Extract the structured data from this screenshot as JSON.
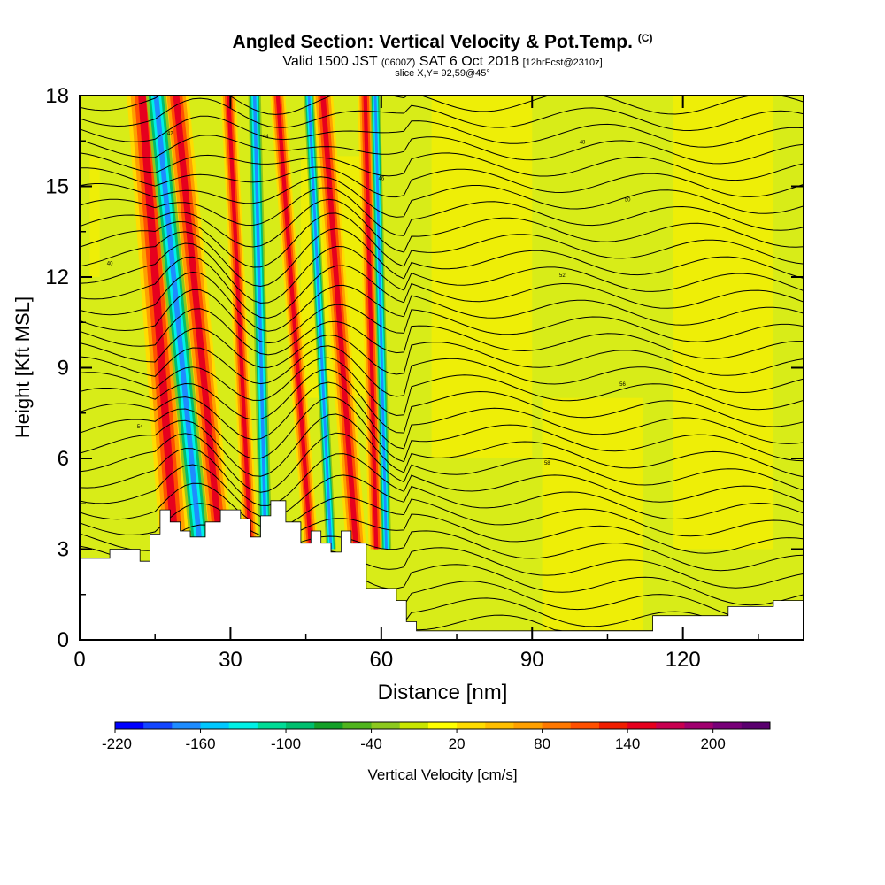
{
  "title": {
    "main": "Angled Section: Vertical Velocity & Pot.Temp.",
    "main_tag": "(C)",
    "valid_a": "Valid 1500 JST",
    "valid_b": "(0600Z)",
    "valid_c": "SAT 6 Oct 2018",
    "valid_d": "[12hrFcst@2310z]",
    "slice": "slice X,Y= 92,59@45°"
  },
  "chart_data": {
    "type": "heatmap",
    "xlabel": "Distance [nm]",
    "ylabel": "Height [Kft MSL]",
    "xlim": [
      0,
      144
    ],
    "ylim": [
      0,
      18
    ],
    "x_ticks": [
      "0",
      "30",
      "60",
      "90",
      "120"
    ],
    "y_ticks": [
      "0",
      "3",
      "6",
      "9",
      "12",
      "15",
      "18"
    ],
    "colorbar": {
      "label": "Vertical Velocity [cm/s]",
      "tick_labels": [
        "-220",
        "-160",
        "-100",
        "-40",
        "20",
        "80",
        "140",
        "200"
      ],
      "colors": [
        "#0000ff",
        "#1446ff",
        "#1e8cff",
        "#00c8ff",
        "#00f0e6",
        "#00dc96",
        "#00be6e",
        "#14a028",
        "#50b41e",
        "#8cc81e",
        "#c8e600",
        "#ffff00",
        "#ffdc00",
        "#ffbe00",
        "#ffa000",
        "#ff7800",
        "#ff5000",
        "#f01e00",
        "#e6001e",
        "#c80050",
        "#a0006e",
        "#780078",
        "#5a006e"
      ]
    },
    "updraft_bands": [
      {
        "x": 19,
        "w": 6,
        "lean": 3
      },
      {
        "x": 28,
        "w": 5,
        "lean": 4
      },
      {
        "x": 34,
        "w": 3,
        "lean": 2
      },
      {
        "x": 46,
        "w": 3,
        "lean": 3
      },
      {
        "x": 55,
        "w": 4,
        "lean": 3
      },
      {
        "x": 59,
        "w": 3,
        "lean": 1
      }
    ],
    "downdraft_bands": [
      {
        "x": 24,
        "w": 4,
        "lean": 4
      },
      {
        "x": 37,
        "w": 2.5,
        "lean": 1
      },
      {
        "x": 50,
        "w": 2,
        "lean": 2
      },
      {
        "x": 61,
        "w": 2,
        "lean": 1
      }
    ],
    "terrain": [
      [
        0,
        2.7
      ],
      [
        6,
        2.7
      ],
      [
        6,
        3
      ],
      [
        12,
        3
      ],
      [
        12,
        2.6
      ],
      [
        14,
        2.6
      ],
      [
        14,
        3.5
      ],
      [
        16,
        3.5
      ],
      [
        16,
        4.3
      ],
      [
        18,
        4.3
      ],
      [
        18,
        3.9
      ],
      [
        20,
        3.9
      ],
      [
        20,
        3.6
      ],
      [
        22,
        3.6
      ],
      [
        22,
        3.4
      ],
      [
        25,
        3.4
      ],
      [
        25,
        3.9
      ],
      [
        28,
        3.9
      ],
      [
        28,
        4.3
      ],
      [
        32,
        4.3
      ],
      [
        32,
        4
      ],
      [
        34,
        4
      ],
      [
        34,
        3.4
      ],
      [
        36,
        3.4
      ],
      [
        36,
        4.1
      ],
      [
        38,
        4.1
      ],
      [
        38,
        4.6
      ],
      [
        41,
        4.6
      ],
      [
        41,
        3.9
      ],
      [
        44,
        3.9
      ],
      [
        44,
        3.2
      ],
      [
        46,
        3.2
      ],
      [
        46,
        3.6
      ],
      [
        48,
        3.6
      ],
      [
        48,
        3.2
      ],
      [
        50,
        3.2
      ],
      [
        50,
        2.9
      ],
      [
        52,
        2.9
      ],
      [
        52,
        3.6
      ],
      [
        54,
        3.6
      ],
      [
        54,
        3.2
      ],
      [
        57,
        3.2
      ],
      [
        57,
        1.7
      ],
      [
        63,
        1.7
      ],
      [
        63,
        1.3
      ],
      [
        65,
        1.3
      ],
      [
        65,
        0.6
      ],
      [
        67,
        0.6
      ],
      [
        67,
        0.3
      ],
      [
        114,
        0.3
      ],
      [
        114,
        0.8
      ],
      [
        129,
        0.8
      ],
      [
        129,
        1.1
      ],
      [
        138,
        1.1
      ],
      [
        138,
        1.3
      ],
      [
        144,
        1.3
      ]
    ],
    "isentrope_labels": [
      "40",
      "42",
      "44",
      "46",
      "48",
      "50",
      "52",
      "54",
      "56",
      "58"
    ]
  }
}
